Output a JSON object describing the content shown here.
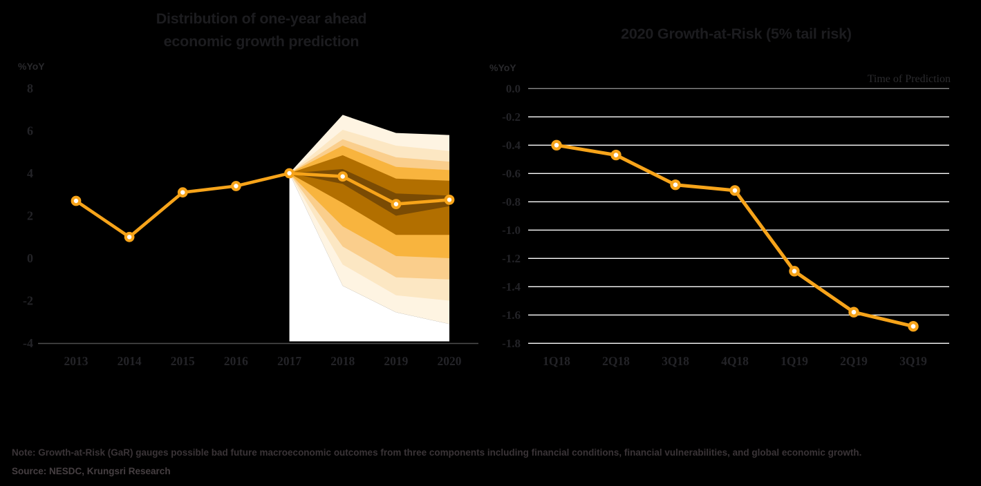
{
  "figure": {
    "background": "#000000",
    "note": "Note: Growth-at-Risk (GaR) gauges possible bad future macroeconomic outcomes from three components including financial conditions, financial vulnerabilities, and global economic growth.",
    "source": "Source: NESDC, Krungsri Research"
  },
  "chart_data": [
    {
      "type": "line",
      "id": "fan-chart",
      "title": "Distribution of one-year ahead economic growth prediction",
      "title_lines": [
        "Distribution of one-year ahead",
        "economic growth prediction"
      ],
      "unit_label": "%YoY",
      "xlabel": "",
      "ylabel": "%YoY",
      "categories": [
        "2013",
        "2014",
        "2015",
        "2016",
        "2017",
        "2018",
        "2019",
        "2020"
      ],
      "values": [
        2.7,
        1.0,
        3.1,
        3.4,
        4.0,
        3.85,
        2.55,
        2.75
      ],
      "ylim": [
        -4,
        8
      ],
      "yticks": [
        "8",
        "6",
        "4",
        "2",
        "0",
        "-2",
        "-4"
      ],
      "ytick_values": [
        8,
        6,
        4,
        2,
        0,
        -2,
        -4
      ],
      "grid": false,
      "line_color": "#F7A41A",
      "marker_fill": "#FFFFFF",
      "axis_color": "#4F4F4F",
      "fan": {
        "note": "forecast distribution bands from 2017, outermost band listed last",
        "x": [
          "2017",
          "2018",
          "2019",
          "2020"
        ],
        "upper_bounds": [
          [
            4.0,
            4.2,
            3.05,
            2.95
          ],
          [
            4.0,
            4.85,
            3.75,
            3.65
          ],
          [
            4.0,
            5.3,
            4.3,
            4.15
          ],
          [
            4.0,
            5.6,
            4.75,
            4.55
          ],
          [
            4.0,
            6.05,
            5.3,
            5.05
          ],
          [
            4.0,
            6.75,
            5.9,
            5.8
          ]
        ],
        "lower_bounds": [
          [
            4.0,
            3.5,
            2.0,
            2.45
          ],
          [
            4.0,
            2.6,
            1.1,
            1.1
          ],
          [
            4.0,
            1.5,
            0.1,
            0.0
          ],
          [
            4.0,
            0.55,
            -0.9,
            -1.0
          ],
          [
            4.0,
            -0.3,
            -1.75,
            -2.0
          ],
          [
            4.0,
            -1.3,
            -2.55,
            -3.1
          ]
        ],
        "band_colors": [
          "#7A4B04",
          "#B26F00",
          "#F8B43E",
          "#FACE8C",
          "#FCE7C3",
          "#FEF4E2"
        ],
        "backdrop_color": "#FFFFFF"
      }
    },
    {
      "type": "line",
      "id": "gar-chart",
      "title": "2020 Growth-at-Risk (5% tail risk)",
      "top_right_label": "Time of Prediction",
      "unit_label": "%YoY",
      "xlabel": "Time of Prediction",
      "ylabel": "%YoY",
      "categories": [
        "1Q18",
        "2Q18",
        "3Q18",
        "4Q18",
        "1Q19",
        "2Q19",
        "3Q19"
      ],
      "values": [
        -0.4,
        -0.47,
        -0.68,
        -0.72,
        -1.29,
        -1.58,
        -1.68
      ],
      "ylim": [
        -1.8,
        0.0
      ],
      "yticks": [
        "0.0",
        "-0.2",
        "-0.4",
        "-0.6",
        "-0.8",
        "-1.0",
        "-1.2",
        "-1.4",
        "-1.6",
        "-1.8"
      ],
      "ytick_values": [
        0.0,
        -0.2,
        -0.4,
        -0.6,
        -0.8,
        -1.0,
        -1.2,
        -1.4,
        -1.6,
        -1.8
      ],
      "grid": true,
      "grid_color": "#FFFFFF",
      "grid_color_zero": "#8A8A8A",
      "line_color": "#F7A41A",
      "marker_fill": "#FFFFFF"
    }
  ]
}
